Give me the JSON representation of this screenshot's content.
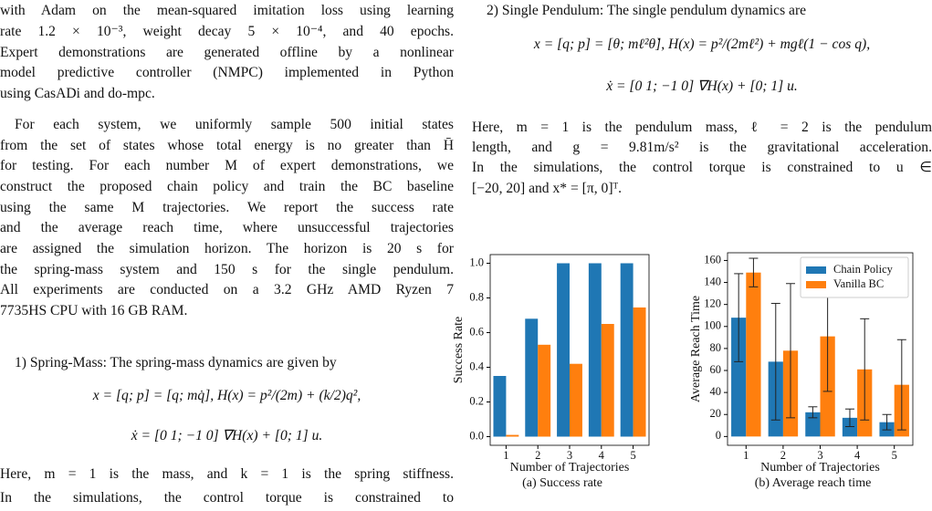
{
  "left_column": {
    "paragraphs": [
      [
        "with Adam on the mean-squared imitation loss using learning",
        "rate 1.2 × 10⁻³, weight decay 5 × 10⁻⁴, and 40 epochs.",
        "Expert demonstrations are generated offline by a nonlinear",
        "model predictive controller (NMPC) implemented in Python",
        "using CasADi and do-mpc."
      ],
      [
        "For each system, we uniformly sample 500 initial states",
        "from the set of states whose total energy is no greater than H̄",
        "for testing. For each number M of expert demonstrations, we",
        "construct the proposed chain policy and train the BC baseline",
        "using the same M trajectories. We report the success rate",
        "and the average reach time, where unsuccessful trajectories",
        "are assigned the simulation horizon. The horizon is 20 s for",
        "the spring-mass system and 150 s for the single pendulum.",
        "All experiments are conducted on a 3.2 GHz AMD Ryzen 7",
        "7735HS CPU with 16 GB RAM."
      ],
      [
        "1) Spring-Mass: The spring-mass dynamics are given by"
      ],
      [
        "Here, m = 1 is the mass, and k = 1 is the spring stiffness.",
        "In the simulations, the control torque is constrained to"
      ]
    ],
    "equations": [
      "x = [q; p] = [q; mq̇], H(x) = p²/(2m) + (k/2)q²,",
      "ẋ = [0 1; −1 0] ∇H(x) + [0; 1] u."
    ]
  },
  "right_column": {
    "paragraphs": [
      [
        "2) Single Pendulum: The single pendulum dynamics are"
      ],
      [
        "Here, m = 1 is the pendulum mass, ℓ = 2 is the pendulum",
        "length, and g = 9.81m/s² is the gravitational acceleration.",
        "In the simulations, the control torque is constrained to u ∈",
        "[−20, 20] and x* = [π, 0]ᵀ."
      ]
    ],
    "equations": [
      "x = [q; p] = [θ; mℓ²θ̇], H(x) = p²/(2mℓ²) + mgℓ(1 − cos q),",
      "ẋ = [0 1; −1 0] ∇H(x) + [0; 1] u."
    ]
  },
  "chart_data": [
    {
      "type": "bar",
      "caption": "(a) Success rate",
      "x_label": "Number of Trajectories",
      "y_label": "Success Rate",
      "categories": [
        "1",
        "2",
        "3",
        "4",
        "5"
      ],
      "series": [
        {
          "name": "Chain Policy",
          "color": "#1f77b4",
          "values": [
            0.35,
            0.68,
            1.0,
            1.0,
            1.0
          ]
        },
        {
          "name": "Vanilla BC",
          "color": "#ff7f0e",
          "values": [
            0.01,
            0.53,
            0.42,
            0.65,
            0.745
          ]
        }
      ],
      "ylim": [
        -0.05,
        1.05
      ],
      "yticks": [
        {
          "value": 0,
          "label": "0.0"
        },
        0.2,
        0.4,
        0.6,
        0.8,
        {
          "value": 1,
          "label": "1.0"
        }
      ]
    },
    {
      "type": "bar",
      "caption": "(b) Average reach time",
      "x_label": "Number of Trajectories",
      "y_label": "Average Reach Time",
      "categories": [
        "1",
        "2",
        "3",
        "4",
        "5"
      ],
      "series": [
        {
          "name": "Chain Policy",
          "color": "#1f77b4",
          "values": [
            108,
            68,
            22,
            17,
            13
          ],
          "errors": [
            40,
            53,
            5,
            8,
            7
          ]
        },
        {
          "name": "Vanilla BC",
          "color": "#ff7f0e",
          "values": [
            149,
            78,
            91,
            61,
            47
          ],
          "errors": [
            13,
            61,
            50,
            46,
            41
          ]
        }
      ],
      "ylim": [
        -8,
        167
      ],
      "yticks": [
        0,
        20,
        40,
        60,
        80,
        100,
        120,
        140,
        160
      ],
      "legend": "upper right"
    }
  ]
}
